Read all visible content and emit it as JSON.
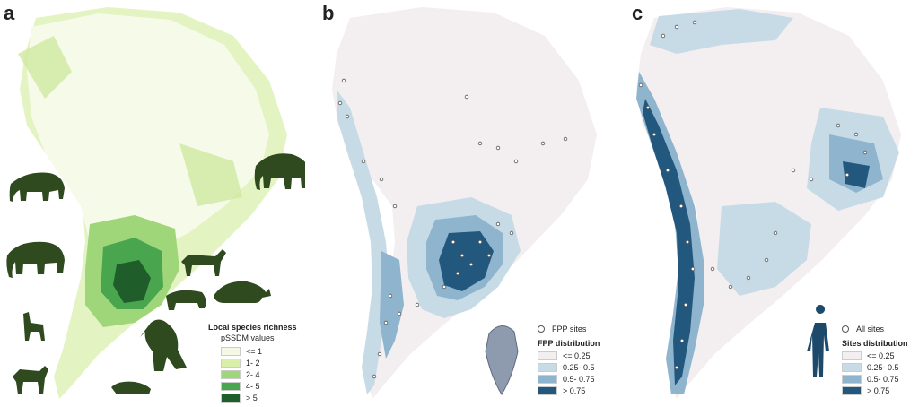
{
  "panels": [
    {
      "letter": "a",
      "legend_title": "Local species richness",
      "legend_subtitle": "pSSDM values",
      "classes": [
        {
          "label": "<= 1",
          "color": "#f3f9e4"
        },
        {
          "label": "1- 2",
          "color": "#d9efa8"
        },
        {
          "label": "2- 4",
          "color": "#9fd67a"
        },
        {
          "label": "4- 5",
          "color": "#4aa64e"
        },
        {
          "label": "> 5",
          "color": "#1f5e2a"
        }
      ]
    },
    {
      "letter": "b",
      "sites_label": "FPP sites",
      "legend_title": "FPP distribution",
      "classes": [
        {
          "label": "<= 0.25",
          "color": "#f3eef0"
        },
        {
          "label": "0.25- 0.5",
          "color": "#c7dbe6"
        },
        {
          "label": "0.5- 0.75",
          "color": "#8fb4cd"
        },
        {
          "label": "> 0.75",
          "color": "#23587e"
        }
      ]
    },
    {
      "letter": "c",
      "sites_label": "All sites",
      "legend_title": "Sites distribution",
      "classes": [
        {
          "label": "<= 0.25",
          "color": "#f3eef0"
        },
        {
          "label": "0.25- 0.5",
          "color": "#c7dbe6"
        },
        {
          "label": "0.5- 0.75",
          "color": "#8fb4cd"
        },
        {
          "label": "> 0.75",
          "color": "#23587e"
        }
      ]
    }
  ],
  "colors": {
    "silhouette_animal": "#2e4a1e",
    "silhouette_human": "#1d4a6b",
    "spearpoint": "#8e9aae"
  },
  "icons": [
    "megafauna-silhouettes",
    "fishtail-projectile-point",
    "human-figure"
  ]
}
